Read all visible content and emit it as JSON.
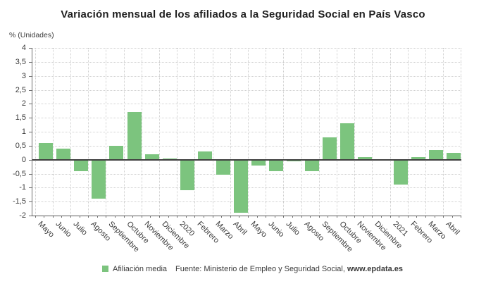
{
  "title": "Variación mensual de los afiliados a la Seguridad Social en País Vasco",
  "y_axis_unit_label": "% (Unidades)",
  "legend": {
    "label": "Afiliación media"
  },
  "source": {
    "prefix": "Fuente: Ministerio de Empleo y Seguridad Social, ",
    "bold": "www.epdata.es"
  },
  "colors": {
    "bar": "#7cc47e",
    "grid": "#cfcfcf",
    "axis": "#6f6f6f",
    "zero_line": "#3f3f3f",
    "text": "#3b3b3b",
    "title": "#1f1f1f"
  },
  "chart_data": {
    "type": "bar",
    "title": "Variación mensual de los afiliados a la Seguridad Social en País Vasco",
    "xlabel": "",
    "ylabel": "% (Unidades)",
    "ylim": [
      -2,
      4
    ],
    "ytick_step": 0.5,
    "ytick_values": [
      4,
      3.5,
      3,
      2.5,
      2,
      1.5,
      1,
      0.5,
      0,
      -0.5,
      -1,
      -1.5,
      -2
    ],
    "ytick_labels": [
      "4",
      "3,5",
      "3",
      "2,5",
      "2",
      "1,5",
      "1",
      "0,5",
      "0",
      "-0,5",
      "-1",
      "-1,5",
      "-2"
    ],
    "grid": true,
    "legend_position": "bottom",
    "categories": [
      "Mayo",
      "Junio",
      "Julio",
      "Agosto",
      "Septiembre",
      "Octubre",
      "Noviembre",
      "Diciembre",
      "2020",
      "Febrero",
      "Marzo",
      "Abril",
      "Mayo",
      "Junio",
      "Julio",
      "Agosto",
      "Septiembre",
      "Octubre",
      "Noviembre",
      "Diciembre",
      "2021",
      "Febrero",
      "Marzo",
      "Abril"
    ],
    "series": [
      {
        "name": "Afiliación media",
        "values": [
          0.6,
          0.4,
          -0.4,
          -1.4,
          0.5,
          1.7,
          0.2,
          0.05,
          -1.1,
          0.3,
          -0.55,
          -1.9,
          -0.2,
          -0.4,
          -0.05,
          -0.4,
          0.8,
          1.3,
          0.1,
          0.0,
          -0.9,
          0.1,
          0.35,
          0.25
        ]
      }
    ]
  }
}
